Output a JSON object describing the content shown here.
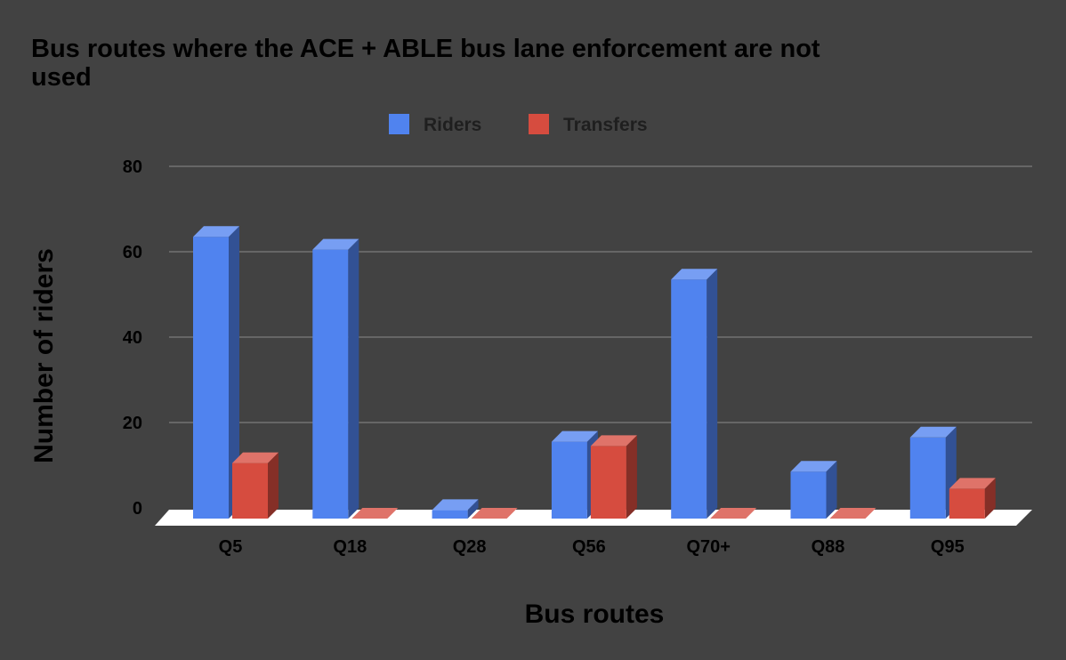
{
  "chart_data": {
    "type": "bar",
    "title": "Bus routes where the ACE + ABLE bus lane enforcement are not used",
    "xlabel": "Bus routes",
    "ylabel": "Number of riders",
    "categories": [
      "Q5",
      "Q18",
      "Q28",
      "Q56",
      "Q70+",
      "Q88",
      "Q95"
    ],
    "series": [
      {
        "name": "Riders",
        "values": [
          66,
          63,
          2,
          18,
          56,
          11,
          19
        ],
        "color": "#5083ef"
      },
      {
        "name": "Transfers",
        "values": [
          13,
          0,
          0,
          17,
          0,
          0,
          7
        ],
        "color": "#d64c3f"
      }
    ],
    "ylim": [
      0,
      80
    ],
    "yticks": [
      "0",
      "20",
      "40",
      "60",
      "80"
    ],
    "grid": true,
    "legend_position": "top-center",
    "style": "3d"
  }
}
